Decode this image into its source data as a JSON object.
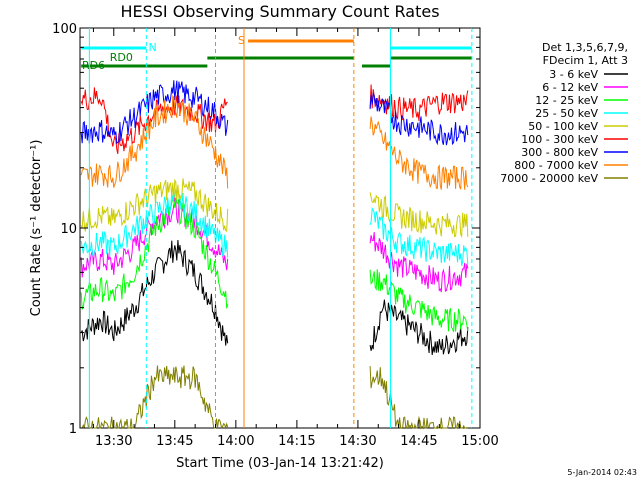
{
  "chart_data": {
    "type": "line",
    "title": "HESSI Observing Summary Count Rates",
    "xlabel": "Start Time (03-Jan-14 13:21:42)",
    "ylabel": "Count Rate (s⁻¹ detector⁻¹)",
    "y_scale": "log",
    "ylim": [
      1,
      100
    ],
    "xlim": [
      "13:21:42",
      "15:00:00"
    ],
    "x_ticks": [
      "13:30",
      "13:45",
      "14:00",
      "14:15",
      "14:30",
      "14:45",
      "15:00"
    ],
    "y_ticks": [
      "1",
      "10",
      "100"
    ],
    "legend_placement": "top-right",
    "legend_header": [
      "Det 1,3,5,6,7,9,",
      "FDecim 1, Att 3"
    ],
    "series": [
      {
        "name": "3 - 6 keV",
        "color": "#000000",
        "x": [
          "13:22",
          "13:27",
          "13:30",
          "13:35",
          "13:40",
          "13:45",
          "13:50",
          "13:55",
          "13:58",
          "14:33",
          "14:36",
          "14:40",
          "14:45",
          "14:50",
          "14:57"
        ],
        "values": [
          3.0,
          3.5,
          3.0,
          4.0,
          6.0,
          8.0,
          6.0,
          4.0,
          2.5,
          2.5,
          4.0,
          3.5,
          3.0,
          2.5,
          3.0
        ]
      },
      {
        "name": "6 - 12 keV",
        "color": "#ff00ff",
        "x": [
          "13:22",
          "13:27",
          "13:30",
          "13:35",
          "13:40",
          "13:45",
          "13:50",
          "13:55",
          "13:58",
          "14:33",
          "14:36",
          "14:40",
          "14:45",
          "14:50",
          "14:57"
        ],
        "values": [
          6.5,
          7.0,
          6.5,
          8.0,
          11.0,
          12.5,
          11.0,
          8.0,
          6.5,
          9.0,
          8.0,
          6.5,
          6.0,
          5.5,
          6.0
        ]
      },
      {
        "name": "12 - 25 keV",
        "color": "#00ff00",
        "x": [
          "13:22",
          "13:27",
          "13:30",
          "13:35",
          "13:40",
          "13:45",
          "13:50",
          "13:55",
          "13:58",
          "14:33",
          "14:36",
          "14:40",
          "14:45",
          "14:50",
          "14:57"
        ],
        "values": [
          4.5,
          5.0,
          4.5,
          6.0,
          10.0,
          13.0,
          10.0,
          6.0,
          4.5,
          5.5,
          5.5,
          4.5,
          4.0,
          3.5,
          3.5
        ]
      },
      {
        "name": "25 - 50 keV",
        "color": "#00ffff",
        "x": [
          "13:22",
          "13:27",
          "13:30",
          "13:35",
          "13:40",
          "13:45",
          "13:50",
          "13:55",
          "13:58",
          "14:33",
          "14:36",
          "14:40",
          "14:45",
          "14:50",
          "14:57"
        ],
        "values": [
          8.0,
          8.5,
          8.0,
          10.0,
          12.0,
          14.0,
          12.0,
          9.0,
          8.0,
          12.0,
          10.0,
          8.5,
          8.0,
          7.5,
          7.5
        ]
      },
      {
        "name": "50 - 100 keV",
        "color": "#cccc00",
        "x": [
          "13:22",
          "13:27",
          "13:30",
          "13:35",
          "13:40",
          "13:45",
          "13:50",
          "13:55",
          "13:58",
          "14:33",
          "14:36",
          "14:40",
          "14:45",
          "14:50",
          "14:57"
        ],
        "values": [
          11.0,
          11.5,
          11.0,
          13.0,
          15.0,
          16.0,
          15.0,
          12.0,
          11.0,
          15.0,
          13.0,
          11.5,
          11.0,
          10.5,
          10.5
        ]
      },
      {
        "name": "100 - 300 keV",
        "color": "#ff0000",
        "x": [
          "13:22",
          "13:27",
          "13:30",
          "13:35",
          "13:40",
          "13:45",
          "13:50",
          "13:55",
          "13:58",
          "14:33",
          "14:36",
          "14:40",
          "14:45",
          "14:50",
          "14:57"
        ],
        "values": [
          44.0,
          46.0,
          25.0,
          30.0,
          38.0,
          41.0,
          38.0,
          33.0,
          44.0,
          46.0,
          44.0,
          40.0,
          39.0,
          43.0,
          43.0
        ]
      },
      {
        "name": "300 - 800 keV",
        "color": "#0000ff",
        "x": [
          "13:22",
          "13:27",
          "13:30",
          "13:35",
          "13:40",
          "13:45",
          "13:50",
          "13:55",
          "13:58",
          "14:33",
          "14:36",
          "14:40",
          "14:45",
          "14:50",
          "14:57"
        ],
        "values": [
          30.0,
          31.0,
          29.0,
          36.0,
          45.0,
          49.0,
          45.0,
          38.0,
          31.0,
          45.0,
          40.0,
          34.0,
          32.0,
          30.0,
          30.0
        ]
      },
      {
        "name": "800 - 7000 keV",
        "color": "#ff8000",
        "x": [
          "13:22",
          "13:27",
          "13:30",
          "13:35",
          "13:40",
          "13:45",
          "13:50",
          "13:55",
          "13:58",
          "14:33",
          "14:36",
          "14:40",
          "14:45",
          "14:50",
          "14:57"
        ],
        "values": [
          18.0,
          19.0,
          18.0,
          24.0,
          35.0,
          42.0,
          35.0,
          24.0,
          18.0,
          34.0,
          28.0,
          22.0,
          19.0,
          18.0,
          18.0
        ]
      },
      {
        "name": "7000 - 20000 keV",
        "color": "#808000",
        "x": [
          "13:22",
          "13:27",
          "13:30",
          "13:35",
          "13:40",
          "13:45",
          "13:50",
          "13:55",
          "13:58",
          "14:33",
          "14:36",
          "14:40",
          "14:45",
          "14:50",
          "14:57"
        ],
        "values": [
          1.0,
          1.0,
          1.0,
          1.0,
          1.8,
          1.8,
          1.8,
          1.0,
          1.0,
          1.8,
          1.8,
          1.0,
          1.0,
          1.0,
          1.0
        ]
      }
    ],
    "annotations": [
      {
        "text": "N",
        "color": "#00ffff"
      },
      {
        "text": "S",
        "color": "#ff8000"
      },
      {
        "text": "RD0",
        "color": "#008000"
      },
      {
        "text": "RD6",
        "color": "#008000"
      }
    ],
    "footer_date": "5-Jan-2014 02:43"
  }
}
